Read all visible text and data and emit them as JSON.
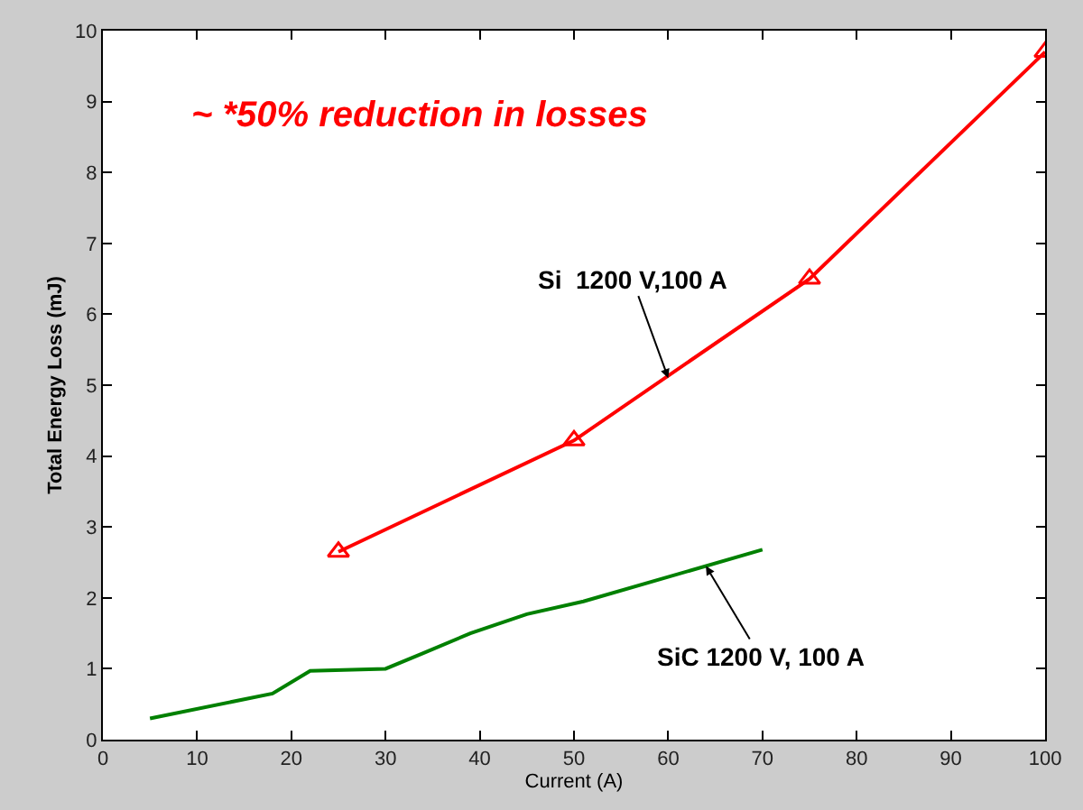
{
  "chart_data": {
    "type": "line",
    "xlabel": "Current (A)",
    "ylabel": "Total Energy Loss (mJ)",
    "series": [
      {
        "color": "#ff0000",
        "marker": "triangle",
        "x": [
          25,
          50,
          75,
          100
        ],
        "values": [
          2.65,
          4.22,
          6.5,
          9.7
        ]
      },
      {
        "color": "#008000",
        "marker": "none",
        "x": [
          5,
          18,
          22,
          30,
          34,
          39,
          45,
          51,
          70
        ],
        "values": [
          0.3,
          0.65,
          0.97,
          1.0,
          1.22,
          1.5,
          1.77,
          1.95,
          2.68
        ]
      }
    ],
    "xlim": [
      0,
      100
    ],
    "xticks": [
      0,
      10,
      20,
      30,
      40,
      50,
      60,
      70,
      80,
      90,
      100
    ],
    "ylim": [
      0,
      10
    ],
    "yticks": [
      0,
      1,
      2,
      3,
      4,
      5,
      6,
      7,
      8,
      9,
      10
    ],
    "annotations": [
      "~ *50% reduction in losses",
      {
        "text": "Si  1200 V,100 A",
        "x": 60,
        "y": 5.1
      },
      {
        "text": "SiC 1200 V, 100 A",
        "x": 64,
        "y": 2.45
      }
    ]
  }
}
